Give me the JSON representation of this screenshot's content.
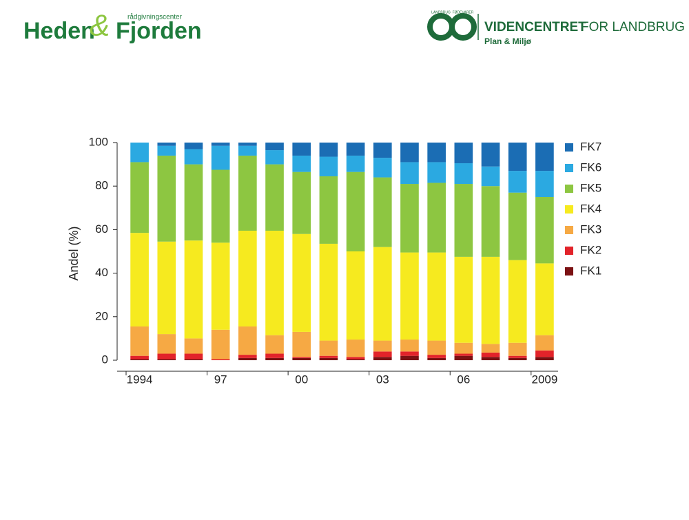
{
  "header": {
    "left_logo": {
      "word1": "Heden",
      "amp": "&",
      "word2": "Fjorden",
      "tagline": "rådgivningscenter"
    },
    "right_logo": {
      "ring_top": "LANDBRUG",
      "ring_right": "FØDEVARER",
      "name_bold": "VIDENCENTRET",
      "name_rest": "FOR LANDBRUG",
      "subtitle": "Plan & Miljø"
    }
  },
  "chart_data": {
    "type": "stacked_bar",
    "y_label": "Andel (%)",
    "categories": [
      "1994",
      null,
      null,
      "97",
      null,
      null,
      "00",
      null,
      null,
      "03",
      null,
      null,
      "06",
      null,
      null,
      "2009"
    ],
    "ylim": [
      0,
      100
    ],
    "yticks": [
      0,
      20,
      40,
      60,
      80,
      100
    ],
    "series": [
      {
        "name": "FK1",
        "color": "#7b1113",
        "values": [
          0.5,
          0.5,
          0.5,
          0,
          1,
          1,
          1,
          1,
          0.5,
          1.5,
          2,
          1,
          2,
          1.5,
          1,
          1.5
        ]
      },
      {
        "name": "FK2",
        "color": "#e2232a",
        "values": [
          1.5,
          2.5,
          2.5,
          0.5,
          1.5,
          2,
          0.5,
          1,
          1,
          2.5,
          2,
          1.5,
          1,
          2,
          1,
          3
        ]
      },
      {
        "name": "FK3",
        "color": "#f6a944",
        "values": [
          13.5,
          9,
          7,
          13.5,
          13,
          8.5,
          11.5,
          7,
          8,
          5,
          5.5,
          6.5,
          5,
          4,
          6,
          7
        ]
      },
      {
        "name": "FK4",
        "color": "#f6ea1f",
        "values": [
          43,
          42.5,
          45,
          40,
          44,
          48,
          45,
          44.5,
          40.5,
          43,
          40,
          40.5,
          39.5,
          40,
          38,
          33
        ]
      },
      {
        "name": "FK5",
        "color": "#8dc641",
        "values": [
          32.5,
          39.5,
          35,
          33.5,
          34.5,
          30.5,
          28.5,
          31,
          36.5,
          32,
          31.5,
          32,
          33.5,
          32.5,
          31,
          30.5
        ]
      },
      {
        "name": "FK6",
        "color": "#2ba9e1",
        "values": [
          9,
          4.5,
          7,
          11,
          4.5,
          6.5,
          7.5,
          9,
          7.5,
          9,
          10,
          9.5,
          9.5,
          9,
          10,
          12
        ]
      },
      {
        "name": "FK7",
        "color": "#1b6db4",
        "values": [
          0,
          1.5,
          3,
          1.5,
          1.5,
          3.5,
          6,
          6.5,
          6,
          7,
          9,
          9,
          9.5,
          11,
          13,
          13
        ]
      }
    ]
  }
}
